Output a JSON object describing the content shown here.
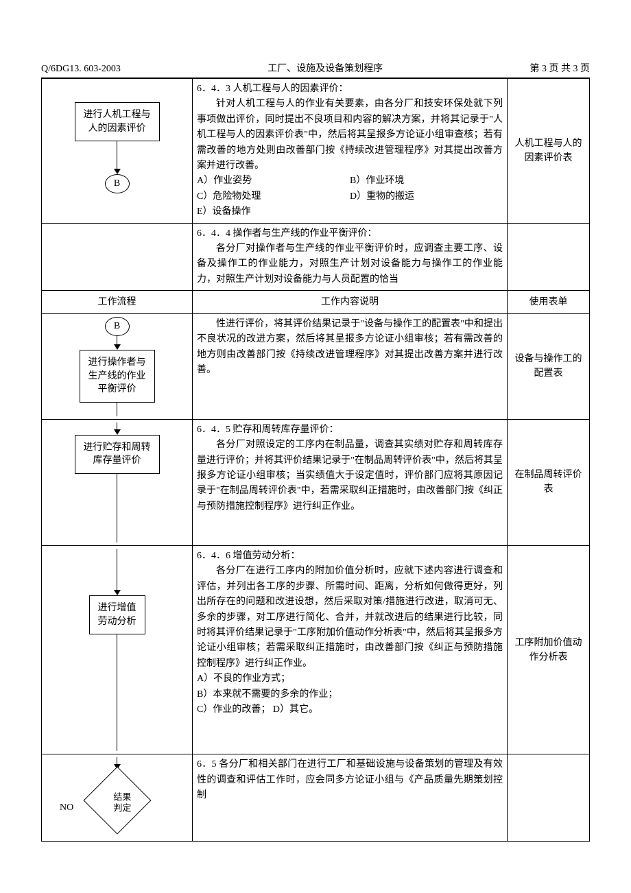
{
  "header": {
    "doc_no": "Q/6DG13. 603-2003",
    "title": "工厂、设施及设备策划程序",
    "page_info": "第 3 页  共 3 页"
  },
  "rows": [
    {
      "flow": {
        "type": "box-circle",
        "box_text": "进行人机工程与\n人的因素评价",
        "circle_text": "B",
        "pre_line": 30,
        "mid_line": 40
      },
      "desc": {
        "title": "6．4．3 人机工程与人的因素评价：",
        "body": "针对人机工程与人的作业有关要素，由各分厂和技安环保处就下列事项做出评价，同时提出不良项目和内容的解决方案，并将其记录于\"人机工程与人的因素评价表\"中，然后将其呈报多方论证小组审查核；若有需改善的地方处则由改善部门按《持续改进管理程序》对其提出改善方案并进行改善。",
        "list": [
          [
            "A）作业姿势",
            "B）作业环境"
          ],
          [
            "C）危险物处理",
            "D）重物的搬运"
          ],
          [
            "E）设备操作",
            ""
          ]
        ]
      },
      "form": "人机工程与人的因素评价表"
    },
    {
      "flow": {
        "type": "empty"
      },
      "desc": {
        "title": "6．4．4 操作者与生产线的作业平衡评价：",
        "body": "各分厂对操作者与生产线的作业平衡评价时，应调查主要工序、设备及操作工的作业能力，对照生产计划对设备能力与操作工的作业能力，对照生产计划对设备能力与人员配置的恰当"
      },
      "form": ""
    }
  ],
  "sub_header": {
    "c1": "工作流程",
    "c2": "工作内容说明",
    "c3": "使用表单"
  },
  "rows2": [
    {
      "flow": {
        "type": "circle-box",
        "circle_text": "B",
        "box_text": "进行操作者与\n生产线的作业\n平衡评价",
        "line_after": 20
      },
      "desc": {
        "body": "性进行评价，将其评价结果记录于\"设备与操作工的配置表\"中和提出不良状况的改进方案，然后将其呈报多方论证小组审核；若有需改善的地方则由改善部门按《持续改进管理程序》对其提出改善方案并进行改善。"
      },
      "form": "设备与操作工的配置表"
    },
    {
      "flow": {
        "type": "box-arrow",
        "box_text": "进行贮存和周转\n库存量评价",
        "pre_line": 10,
        "post_line": 100
      },
      "desc": {
        "title": "6．4．5 贮存和周转库存量评价：",
        "body": "各分厂对照设定的工序内在制品量，调查其实绩对贮存和周转库存量进行评价；并将其评价结果记录于\"在制品周转评价表\"中，然后将其呈报多方论证小组审核；当实绩值大于设定值时，评价部门应将其原因记录于\"在制品周转评价表\"中，若需采取纠正措施时，由改善部门按《纠正与预防措施控制程序》进行纠正作业。"
      },
      "form": "在制品周转评价表"
    },
    {
      "flow": {
        "type": "box-arrow",
        "box_text": "进行增值\n劳动分析",
        "pre_line": 60,
        "post_line": 170
      },
      "desc": {
        "title": "6．4．6 增值劳动分析：",
        "body": "各分厂在进行工序内的附加价值分析时，应就下述内容进行调查和评估，并列出各工序的步骤、所需时间、距离，分析如何做得更好，列出所存在的问题和改进设想，然后采取对策/措施进行改进，取消可无、多余的步骤，对工序进行简化、合并，并就改进后的结果进行比较，同时将其评价结果记录于\"工序附加价值动作分析表\"中，然后将其呈报多方论证小组审核；若需采取纠正措施时，由改善部门按《纠正与预防措施控制程序》进行纠正作业。",
        "list_plain": [
          "A）不良的作业方式；",
          "B）本来就不需要的多余的作业；",
          "C）作业的改善； D）其它。"
        ]
      },
      "form": "工序附加价值动作分析表"
    },
    {
      "flow": {
        "type": "diamond",
        "diamond_text": "结果\n判定",
        "no_label": "NO",
        "pre_line": 10
      },
      "desc": {
        "body_plain": "6．5 各分厂和相关部门在进行工厂和基础设施与设备策划的管理及有效性的调查和评估工作时，应会同多方论证小组与《产品质量先期策划控制"
      },
      "form": ""
    }
  ]
}
